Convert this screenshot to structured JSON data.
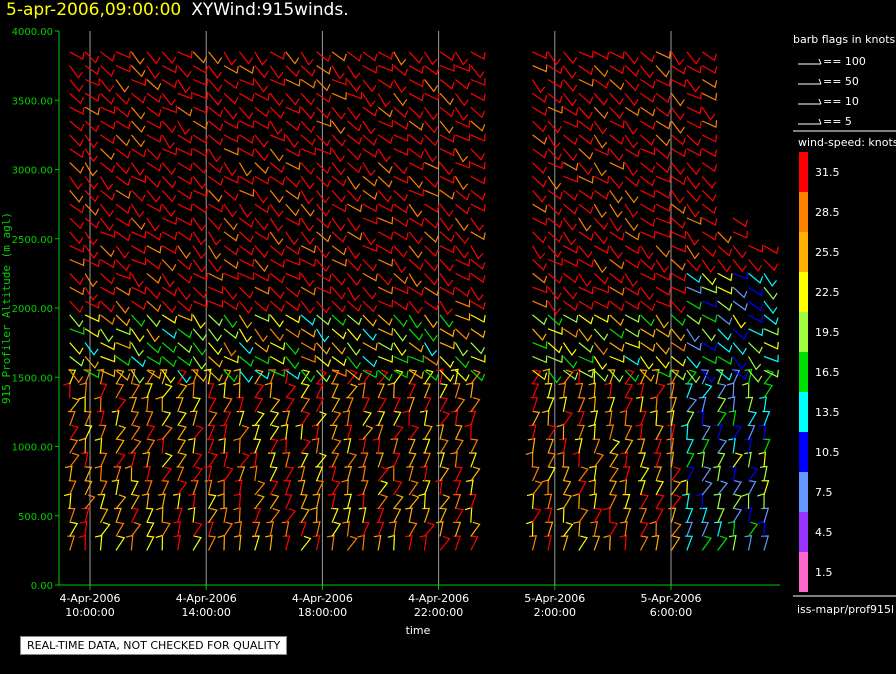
{
  "header": {
    "timestamp": "5-apr-2006,09:00:00",
    "product": "XYWind:915winds."
  },
  "qa_note": "REAL-TIME DATA, NOT CHECKED FOR QUALITY",
  "source": "iss-mapr/prof915l",
  "barb_legend": {
    "title": "barb flags in knots",
    "entries": [
      "== 100",
      "== 50",
      "== 10",
      "== 5"
    ]
  },
  "speed_legend": {
    "title": "wind-speed: knots",
    "levels": [
      "31.5",
      "28.5",
      "25.5",
      "22.5",
      "19.5",
      "16.5",
      "13.5",
      "10.5",
      "7.5",
      "4.5",
      "1.5"
    ],
    "colors": [
      "#ff0000",
      "#ff8000",
      "#ffb000",
      "#ffff00",
      "#a0ff40",
      "#00e000",
      "#00ffff",
      "#0000ff",
      "#6699ff",
      "#9933ff",
      "#ff66cc"
    ]
  },
  "chart_data": {
    "type": "wind-barb profile",
    "ylabel": "915 Profiler Altitude (m agl)",
    "xlabel": "time",
    "ylim": [
      0,
      4000
    ],
    "yticks": [
      "0.00",
      "500.00",
      "1000.00",
      "1500.00",
      "2000.00",
      "2500.00",
      "3000.00",
      "3500.00",
      "4000.00"
    ],
    "xticks": [
      {
        "date": "4-Apr-2006",
        "time": "10:00:00"
      },
      {
        "date": "4-Apr-2006",
        "time": "14:00:00"
      },
      {
        "date": "4-Apr-2006",
        "time": "18:00:00"
      },
      {
        "date": "4-Apr-2006",
        "time": "22:00:00"
      },
      {
        "date": "5-Apr-2006",
        "time": "2:00:00"
      },
      {
        "date": "5-Apr-2006",
        "time": "6:00:00"
      }
    ],
    "x_range_hours": [
      9.0,
      33.5
    ],
    "altitude_start": 250,
    "altitude_step": 100,
    "profile_count": 46,
    "gap_hours": [
      23.2,
      25.0
    ],
    "grid": "vertical at x ticks"
  }
}
